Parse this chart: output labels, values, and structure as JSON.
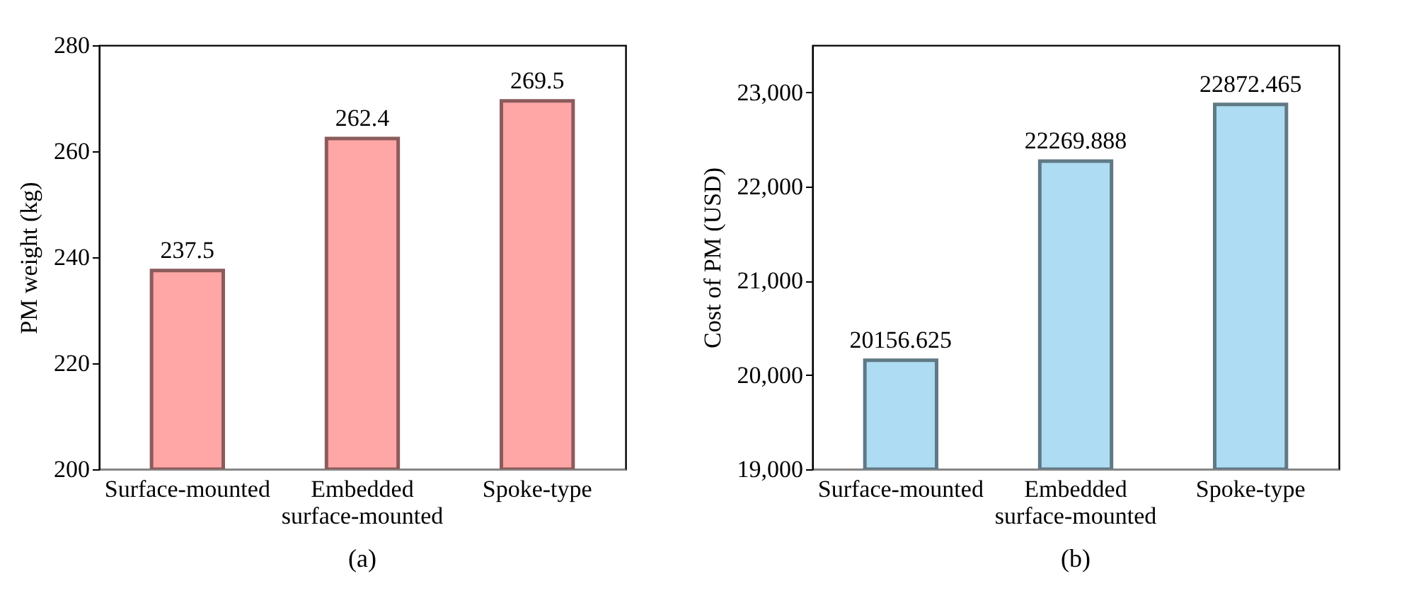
{
  "chart_data": [
    {
      "type": "bar",
      "title": "(a)",
      "ylabel": "PM weight (kg)",
      "categories": [
        "Surface-mounted",
        "Embedded surface-mounted",
        "Spoke-type"
      ],
      "series": [
        {
          "color": "#ffa6a6",
          "values": [
            237.5,
            262.4,
            269.5
          ]
        }
      ],
      "ylim": [
        200,
        280
      ],
      "yticks": [
        200,
        220,
        240,
        260,
        280
      ],
      "data_labels": true,
      "grid": false
    },
    {
      "type": "bar",
      "title": "(b)",
      "ylabel": "Cost of PM (USD)",
      "categories": [
        "Surface-mounted",
        "Embedded surface-mounted",
        "Spoke-type"
      ],
      "series": [
        {
          "color": "#aedcf2",
          "values": [
            20156.625,
            22269.888,
            22872.465
          ]
        }
      ],
      "ylim": [
        19000,
        23500
      ],
      "yticks": [
        {
          "value": 19000,
          "label": "19,000"
        },
        {
          "value": 20000,
          "label": "20,000"
        },
        {
          "value": 21000,
          "label": "21,000"
        },
        {
          "value": 22000,
          "label": "22,000"
        },
        {
          "value": 23000,
          "label": "23,000"
        }
      ],
      "data_labels": true,
      "grid": false
    }
  ]
}
